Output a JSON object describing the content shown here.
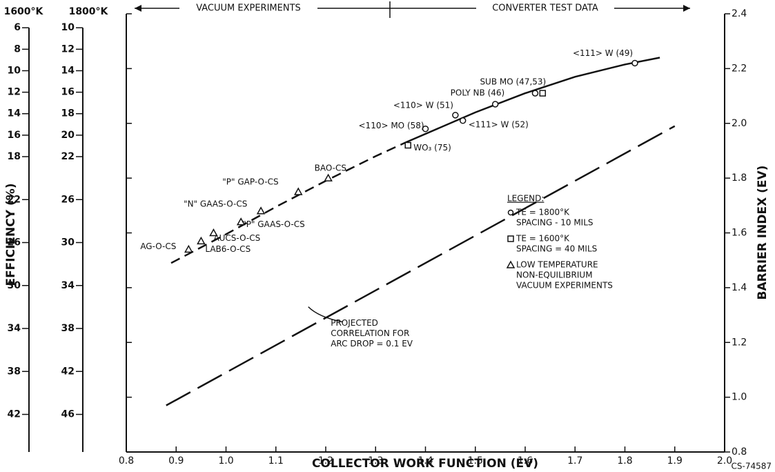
{
  "chart_data": {
    "type": "scatter",
    "xlabel": "COLLECTOR WORK FUNCTION (EV)",
    "ylabel": "BARRIER INDEX (EV)",
    "xlim": [
      0.8,
      2.0
    ],
    "xticks": [
      0.8,
      0.9,
      {
        "value": 1,
        "label": "1.0"
      },
      1.1,
      1.2,
      1.3,
      1.4,
      1.5,
      1.6,
      1.7,
      1.8,
      1.9,
      {
        "value": 2,
        "label": "2.0"
      }
    ],
    "ylim": [
      0.8,
      2.4
    ],
    "yticks": [
      0.8,
      {
        "value": 1,
        "label": "1.0"
      },
      1.2,
      1.4,
      1.6,
      1.8,
      {
        "value": 2,
        "label": "2.0"
      },
      2.2,
      2.4
    ],
    "efficiency_label": "EFFICIENCY (%)",
    "efficiency_axes": [
      {
        "label": "1600°K",
        "ylim": [
          45.5,
          4.7
        ],
        "yticks": [
          6,
          8,
          10,
          12,
          14,
          16,
          18,
          22,
          26,
          30,
          34,
          38,
          42
        ]
      },
      {
        "label": "1800°K",
        "ylim": [
          49.5,
          8.7
        ],
        "yticks": [
          10,
          12,
          14,
          16,
          18,
          20,
          22,
          26,
          30,
          34,
          38,
          42,
          46
        ]
      }
    ],
    "header": [
      "VACUUM EXPERIMENTS",
      "CONVERTER TEST DATA"
    ],
    "legend_title": "LEGEND:",
    "series": [
      {
        "name": "TE = 1800°K",
        "note": [
          "SPACING - 10 MILS"
        ],
        "marker": "circle",
        "color": "#222",
        "x": [
          1.82,
          1.62,
          1.54,
          1.46,
          1.475,
          1.4
        ],
        "values": [
          2.22,
          2.11,
          2.07,
          2.03,
          2.01,
          1.98
        ],
        "labels": [
          "<111> W (49)",
          "SUB MO (47,53)",
          "POLY NB (46)",
          "<110> W (51)",
          "<111> W (52)",
          "<110> MO (58)"
        ]
      },
      {
        "name": "TE = 1600°K",
        "note": [
          "SPACING = 40 MILS"
        ],
        "marker": "square",
        "color": "#222",
        "x": [
          1.635,
          1.365
        ],
        "values": [
          2.11,
          1.92
        ],
        "labels": [
          null,
          "WO₃ (75)"
        ]
      },
      {
        "name": "LOW TEMPERATURE",
        "note": [
          "NON-EQUILIBRIUM",
          "VACUUM EXPERIMENTS"
        ],
        "marker": "triangle",
        "color": "#222",
        "x": [
          1.205,
          1.145,
          1.07,
          1.03,
          0.975,
          0.95,
          0.925
        ],
        "values": [
          1.8,
          1.75,
          1.68,
          1.64,
          1.6,
          1.57,
          1.54
        ],
        "labels": [
          "BAO-CS",
          "\"P\" GAP-O-CS",
          "\"N\" GAAS-O-CS",
          "\"P\" GAAS-O-CS",
          "AUCS-O-CS",
          "LAB6-O-CS",
          "AG-O-CS"
        ]
      }
    ],
    "lines": [
      {
        "style": "dashed",
        "x": [
          0.89,
          1.0,
          1.1,
          1.2,
          1.3,
          1.36
        ],
        "values": [
          1.49,
          1.595,
          1.695,
          1.79,
          1.88,
          1.93
        ]
      },
      {
        "style": "solid",
        "x": [
          1.36,
          1.5,
          1.6,
          1.7,
          1.8,
          1.87
        ],
        "values": [
          1.93,
          2.04,
          2.11,
          2.17,
          2.215,
          2.24
        ]
      },
      {
        "style": "long-dash",
        "x": [
          0.88,
          1.9
        ],
        "values": [
          0.97,
          1.99
        ]
      }
    ],
    "annotation": [
      "PROJECTED",
      "CORRELATION FOR",
      "ARC DROP = 0.1 EV"
    ],
    "figure_id": "CS-74587"
  }
}
